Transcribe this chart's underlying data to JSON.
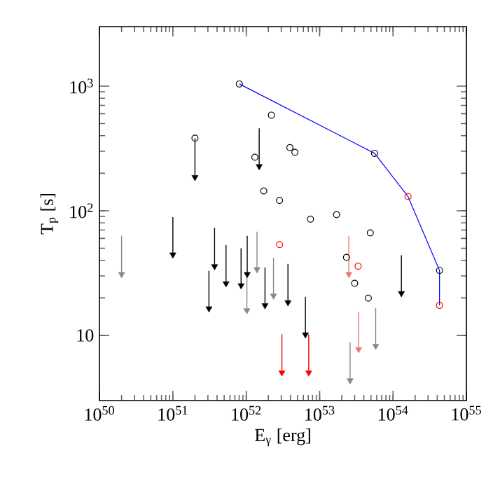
{
  "chart_data": {
    "type": "scatter",
    "xlabel": "E$_{γ}$ [erg]",
    "ylabel": "T$_{p}$ [s]",
    "log": "xy",
    "grid": false,
    "xlim": [
      1e+50,
      1e+55
    ],
    "ylim": [
      3,
      3000
    ],
    "xticks": [
      {
        "value": 1e+50,
        "label": "10$^{50}$"
      },
      {
        "value": 1e+51,
        "label": "10$^{51}$"
      },
      {
        "value": 1e+52,
        "label": "10$^{52}$"
      },
      {
        "value": 1e+53,
        "label": "10$^{53}$"
      },
      {
        "value": 1e+54,
        "label": "10$^{54}$"
      },
      {
        "value": 1e+55,
        "label": "10$^{55}$"
      }
    ],
    "yticks": [
      10,
      {
        "value": 100,
        "label": "10$^{2}$"
      },
      {
        "value": 1000,
        "label": "10$^{3}$"
      }
    ],
    "series": [
      {
        "type": "line",
        "color": "#0000ff",
        "marker": "none",
        "x": [
          8.05e+51,
          5.6e+53,
          1.6e+54,
          4.3e+54,
          4.3e+54
        ],
        "values": [
          1040,
          289,
          130,
          33.2,
          17.4
        ]
      },
      {
        "color": "#000000",
        "marker": "circle",
        "x": [
          8.05e+51,
          2.2e+52,
          2e+51,
          1.31e+52,
          3.93e+52,
          4.6e+52,
          5.6e+53,
          1.73e+52,
          2.84e+52,
          7.5e+52,
          1.7e+53,
          4.9e+53,
          2.32e+53,
          3e+53,
          4.6e+53,
          4.3e+54
        ],
        "values": [
          1040,
          585,
          382,
          269,
          321,
          294,
          289,
          144,
          121,
          85.5,
          93,
          66.5,
          42.3,
          26.2,
          19.9,
          33.2
        ]
      },
      {
        "color": "#ff0000",
        "marker": "circle",
        "x": [
          1.6e+54,
          2.84e+52,
          3.34e+53,
          4.3e+54
        ],
        "values": [
          130,
          53.5,
          35.9,
          17.4
        ]
      },
      {
        "color": "#000000",
        "marker": "triangle",
        "x": [
          1e+51,
          3.7e+51,
          3.1e+51,
          5.3e+51,
          8.5e+51,
          1.03e+52,
          1.8e+52,
          3.7e+52,
          6.4e+52,
          1.3e+54,
          2e+51,
          1.5e+52
        ],
        "values": [
          46,
          37,
          17,
          27,
          26,
          32,
          18,
          19,
          10.5,
          22.5,
          192,
          235
        ],
        "errors": [
          [
            46,
            89
          ],
          [
            37,
            73
          ],
          [
            17,
            33
          ],
          [
            27,
            53
          ],
          [
            26,
            50
          ],
          [
            32,
            63
          ],
          [
            18,
            35
          ],
          [
            19,
            37.5
          ],
          [
            10.5,
            20.4
          ],
          [
            22.5,
            44
          ],
          [
            192,
            382
          ],
          [
            235,
            458
          ]
        ]
      },
      {
        "color": "#888888",
        "marker": "triangle",
        "x": [
          2e+50,
          1.02e+52,
          1.4e+52,
          2.35e+52,
          5.8e+53,
          2.6e+53
        ],
        "values": [
          32,
          16.4,
          35,
          21.5,
          8.5,
          4.5
        ],
        "errors": [
          [
            32,
            63
          ],
          [
            16.4,
            32
          ],
          [
            35,
            68
          ],
          [
            21.5,
            42
          ],
          [
            8.5,
            16.6
          ],
          [
            4.5,
            8.8
          ]
        ]
      },
      {
        "color": "#ee7777",
        "marker": "triangle",
        "x": [
          2.5e+53,
          3.4e+53
        ],
        "values": [
          32,
          8
        ],
        "errors": [
          [
            32,
            63
          ],
          [
            8,
            15.5
          ]
        ]
      },
      {
        "color": "#ff0000",
        "marker": "triangle",
        "x": [
          3.06e+52,
          7.1e+52
        ],
        "values": [
          5.2,
          5.2
        ],
        "errors": [
          [
            5.2,
            10.2
          ],
          [
            5.2,
            10.2
          ]
        ]
      }
    ]
  }
}
